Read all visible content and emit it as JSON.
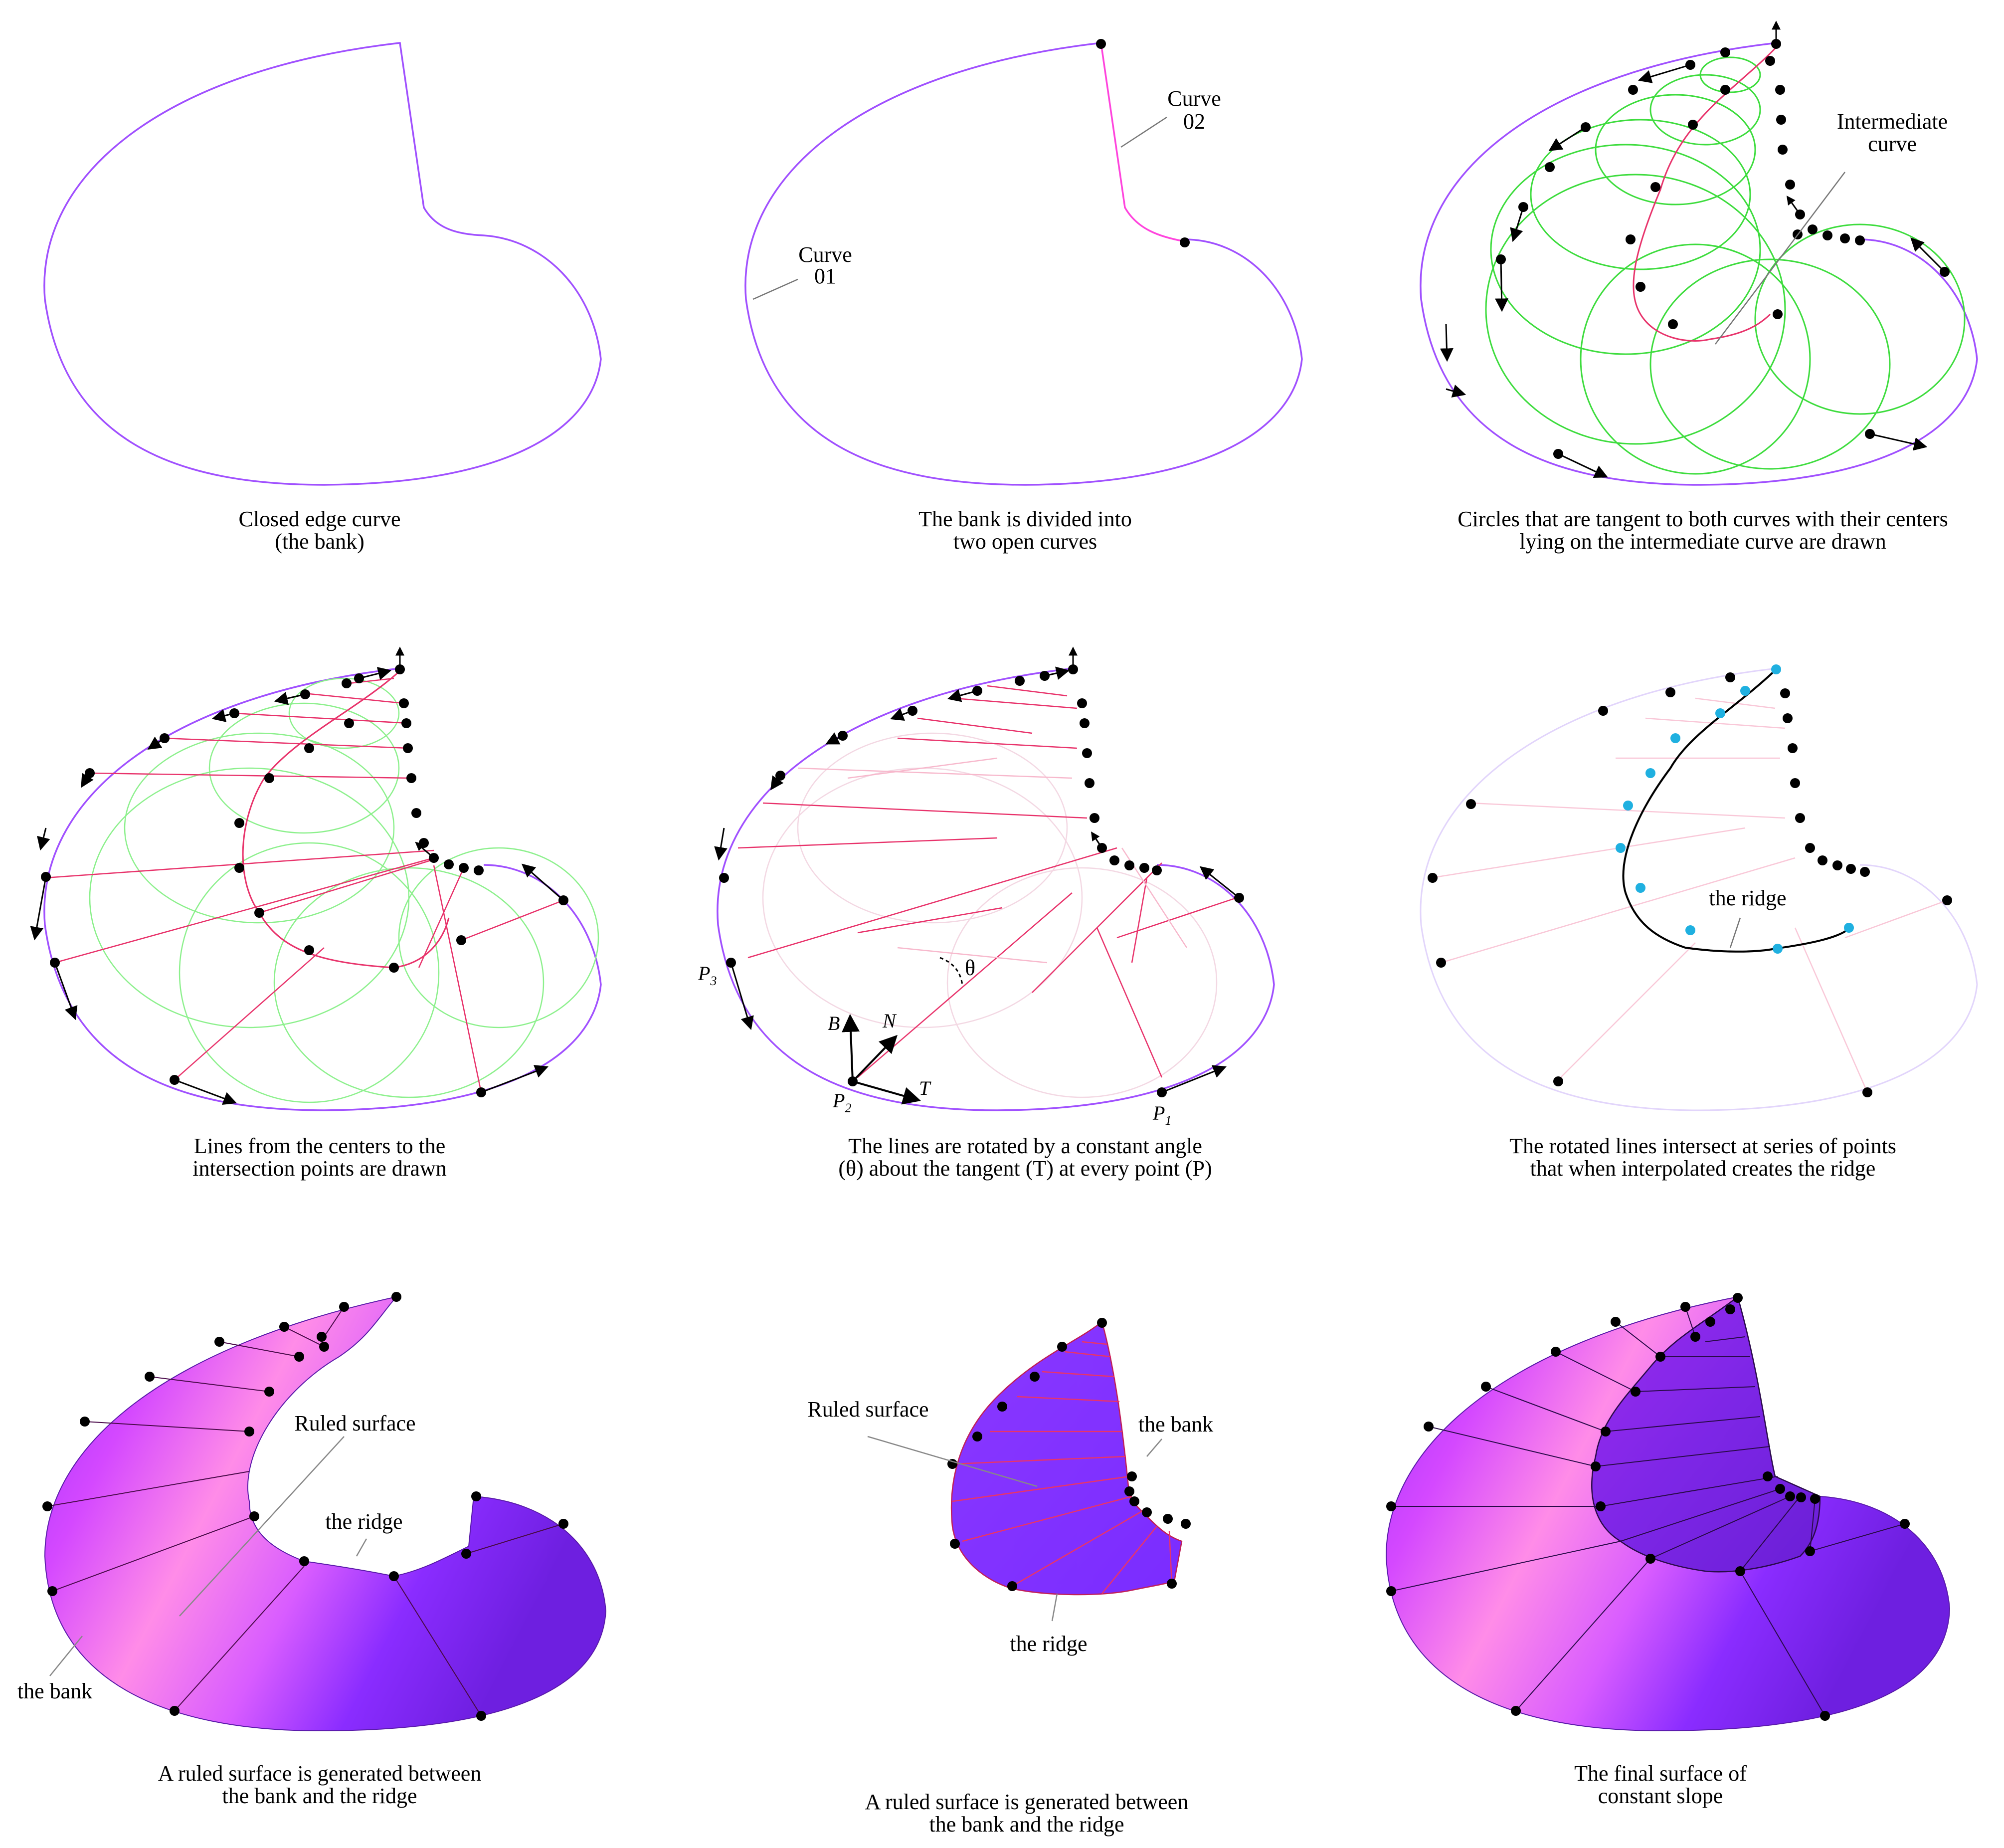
{
  "panels": [
    {
      "id": "p1",
      "caption": [
        "Closed edge curve",
        "(the bank)"
      ]
    },
    {
      "id": "p2",
      "caption": [
        "The bank is divided into",
        "two open curves"
      ]
    },
    {
      "id": "p3",
      "caption": [
        "Circles that are tangent to both curves with their centers",
        "lying on the intermediate curve are drawn"
      ]
    },
    {
      "id": "p4",
      "caption": [
        "Lines from the centers to the",
        "intersection points are drawn"
      ]
    },
    {
      "id": "p5",
      "caption": [
        "The lines are rotated by a constant angle",
        "(θ) about the tangent (T) at every point (P)"
      ]
    },
    {
      "id": "p6",
      "caption": [
        "The rotated lines intersect at series of points",
        "that when interpolated creates the ridge"
      ]
    },
    {
      "id": "p7",
      "caption": [
        "A ruled surface is generated between",
        "the bank and the ridge"
      ]
    },
    {
      "id": "p8",
      "caption": [
        "A ruled surface is generated between",
        "the bank and the ridge"
      ]
    },
    {
      "id": "p9",
      "caption": [
        "The final surface of",
        "constant slope"
      ]
    }
  ],
  "labels": {
    "curve01": [
      "Curve",
      "01"
    ],
    "curve02": [
      "Curve",
      "02"
    ],
    "intermediate": [
      "Intermediate",
      "curve"
    ],
    "ridge": "the ridge",
    "ruled_surface": "Ruled surface",
    "bank": "the bank",
    "theta": "θ",
    "frame": {
      "B": "B",
      "N": "N",
      "T": "T"
    },
    "points": [
      {
        "main": "P",
        "sub": "1"
      },
      {
        "main": "P",
        "sub": "2"
      },
      {
        "main": "P",
        "sub": "3"
      }
    ]
  },
  "colors": {
    "bank": "#9b4dff",
    "circles": "#3ddc3d",
    "lines": "#e8336b",
    "ridge_points": "#1fb0e0",
    "surface_light": "#ff8fe6",
    "surface_dark": "#7a22f0"
  }
}
